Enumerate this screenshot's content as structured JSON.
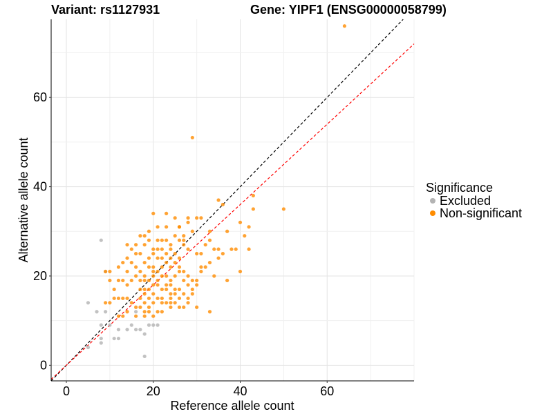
{
  "header": {
    "variant_text": "Variant: rs1127931",
    "gene_text": "Gene: YIPF1 (ENSG00000058799)"
  },
  "legend": {
    "title": "Significance",
    "items": [
      {
        "label": "Excluded",
        "color": "#b3b3b3"
      },
      {
        "label": "Non-significant",
        "color": "#ff8c00"
      }
    ]
  },
  "chart_data": {
    "type": "scatter",
    "xlabel": "Reference allele count",
    "ylabel": "Alternative allele count",
    "xlim": [
      -3.5,
      80
    ],
    "ylim": [
      -3.5,
      77.5
    ],
    "xticks": [
      0,
      20,
      40,
      60
    ],
    "yticks": [
      0,
      20,
      40,
      60
    ],
    "grid": true,
    "legend_position": "right",
    "reference_lines": [
      {
        "description": "y = x",
        "slope": 1,
        "intercept": 0,
        "color": "#000000",
        "dash": true
      },
      {
        "description": "fitted ratio",
        "slope": 0.9,
        "intercept": 0,
        "color": "#ff0000",
        "dash": true
      }
    ],
    "series": [
      {
        "name": "Excluded",
        "color": "#b3b3b3",
        "points": [
          [
            5,
            4
          ],
          [
            5,
            14
          ],
          [
            7,
            12
          ],
          [
            8,
            28
          ],
          [
            8,
            6
          ],
          [
            8,
            5
          ],
          [
            8,
            9
          ],
          [
            9,
            21
          ],
          [
            9,
            12
          ],
          [
            10,
            9
          ],
          [
            11,
            6
          ],
          [
            12,
            8
          ],
          [
            12,
            6
          ],
          [
            14,
            8
          ],
          [
            15,
            9
          ],
          [
            16,
            12
          ],
          [
            16,
            8
          ],
          [
            17,
            8
          ],
          [
            18,
            7
          ],
          [
            18,
            2
          ],
          [
            19,
            9
          ],
          [
            20,
            9
          ],
          [
            21,
            9
          ]
        ]
      },
      {
        "name": "Non-significant",
        "color": "#ff8c00",
        "points": [
          [
            64,
            76
          ],
          [
            29,
            51
          ],
          [
            43,
            38
          ],
          [
            50,
            35
          ],
          [
            35,
            37
          ],
          [
            36,
            36
          ],
          [
            43,
            35
          ],
          [
            40,
            21
          ],
          [
            38,
            26
          ],
          [
            41,
            29
          ],
          [
            42,
            31
          ],
          [
            40,
            32
          ],
          [
            37,
            30
          ],
          [
            39,
            26
          ],
          [
            42,
            26
          ],
          [
            34,
            20
          ],
          [
            35,
            26
          ],
          [
            36,
            25
          ],
          [
            37,
            19
          ],
          [
            30,
            33
          ],
          [
            28,
            33
          ],
          [
            28,
            32
          ],
          [
            25,
            33
          ],
          [
            26,
            31
          ],
          [
            27,
            29
          ],
          [
            29,
            30
          ],
          [
            30,
            25
          ],
          [
            31,
            25
          ],
          [
            32,
            22
          ],
          [
            33,
            30
          ],
          [
            31,
            33
          ],
          [
            30,
            19
          ],
          [
            31,
            21
          ],
          [
            29,
            16
          ],
          [
            33,
            12
          ],
          [
            30,
            13
          ],
          [
            26,
            31
          ],
          [
            23,
            34
          ],
          [
            24,
            27
          ],
          [
            23,
            31
          ],
          [
            20,
            34
          ],
          [
            21,
            31
          ],
          [
            19,
            30
          ],
          [
            18,
            29
          ],
          [
            17,
            29
          ],
          [
            20,
            26
          ],
          [
            21,
            28
          ],
          [
            22,
            26
          ],
          [
            23,
            25
          ],
          [
            24,
            22
          ],
          [
            23,
            20
          ],
          [
            22,
            20
          ],
          [
            21,
            19
          ],
          [
            22,
            17
          ],
          [
            22,
            15
          ],
          [
            24,
            15
          ],
          [
            25,
            20
          ],
          [
            26,
            21
          ],
          [
            24,
            19
          ],
          [
            19,
            22
          ],
          [
            20,
            21
          ],
          [
            18,
            20
          ],
          [
            17,
            19
          ],
          [
            16,
            20
          ],
          [
            15,
            19
          ],
          [
            17,
            17
          ],
          [
            18,
            16
          ],
          [
            19,
            15
          ],
          [
            20,
            16
          ],
          [
            21,
            15
          ],
          [
            18,
            14
          ],
          [
            17,
            13
          ],
          [
            16,
            13
          ],
          [
            15,
            14
          ],
          [
            14,
            15
          ],
          [
            13,
            15
          ],
          [
            12,
            15
          ],
          [
            11,
            15
          ],
          [
            10,
            14
          ],
          [
            9,
            14
          ],
          [
            10,
            19
          ],
          [
            12,
            19
          ],
          [
            13,
            19
          ],
          [
            14,
            18
          ],
          [
            11,
            17
          ],
          [
            10,
            21
          ],
          [
            9,
            21
          ],
          [
            12,
            22
          ],
          [
            13,
            23
          ],
          [
            14,
            21
          ],
          [
            12,
            11
          ],
          [
            13,
            11
          ],
          [
            14,
            12
          ],
          [
            16,
            11
          ],
          [
            18,
            11
          ],
          [
            19,
            12
          ],
          [
            20,
            11
          ],
          [
            21,
            12
          ],
          [
            22,
            12
          ],
          [
            24,
            13
          ],
          [
            25,
            14
          ],
          [
            26,
            15
          ],
          [
            27,
            16
          ],
          [
            28,
            15
          ],
          [
            27,
            19
          ],
          [
            28,
            18
          ],
          [
            29,
            19
          ],
          [
            26,
            24
          ],
          [
            25,
            25
          ],
          [
            24,
            26
          ],
          [
            23,
            28
          ],
          [
            22,
            28
          ],
          [
            23,
            17
          ],
          [
            24,
            18
          ],
          [
            25,
            17
          ],
          [
            26,
            17
          ],
          [
            19,
            17
          ],
          [
            20,
            18
          ],
          [
            18,
            19
          ],
          [
            17,
            21
          ],
          [
            16,
            22
          ],
          [
            15,
            23
          ],
          [
            14,
            24
          ],
          [
            16,
            25
          ],
          [
            15,
            26
          ],
          [
            14,
            27
          ],
          [
            18,
            23
          ],
          [
            19,
            24
          ],
          [
            20,
            25
          ],
          [
            21,
            24
          ],
          [
            22,
            24
          ],
          [
            20,
            22
          ],
          [
            21,
            21
          ],
          [
            22,
            22
          ],
          [
            23,
            23
          ],
          [
            24,
            24
          ],
          [
            25,
            23
          ],
          [
            26,
            22
          ],
          [
            27,
            21
          ],
          [
            28,
            20
          ],
          [
            18,
            27
          ],
          [
            19,
            28
          ],
          [
            17,
            25
          ],
          [
            16,
            27
          ],
          [
            21,
            26
          ],
          [
            17,
            15
          ],
          [
            18,
            17
          ],
          [
            19,
            19
          ],
          [
            20,
            20
          ],
          [
            21,
            18
          ],
          [
            23,
            18
          ],
          [
            24,
            16
          ],
          [
            25,
            16
          ],
          [
            23,
            14
          ],
          [
            19,
            13
          ],
          [
            20,
            14
          ],
          [
            22,
            14
          ],
          [
            24,
            14
          ],
          [
            18,
            12
          ],
          [
            26,
            13
          ],
          [
            27,
            13
          ],
          [
            28,
            14
          ],
          [
            29,
            17
          ],
          [
            30,
            18
          ],
          [
            31,
            22
          ],
          [
            32,
            27
          ],
          [
            33,
            28
          ],
          [
            34,
            26
          ],
          [
            35,
            24
          ],
          [
            33,
            23
          ],
          [
            28,
            26
          ],
          [
            27,
            27
          ],
          [
            26,
            28
          ],
          [
            25,
            29
          ],
          [
            27,
            28
          ]
        ]
      }
    ]
  }
}
